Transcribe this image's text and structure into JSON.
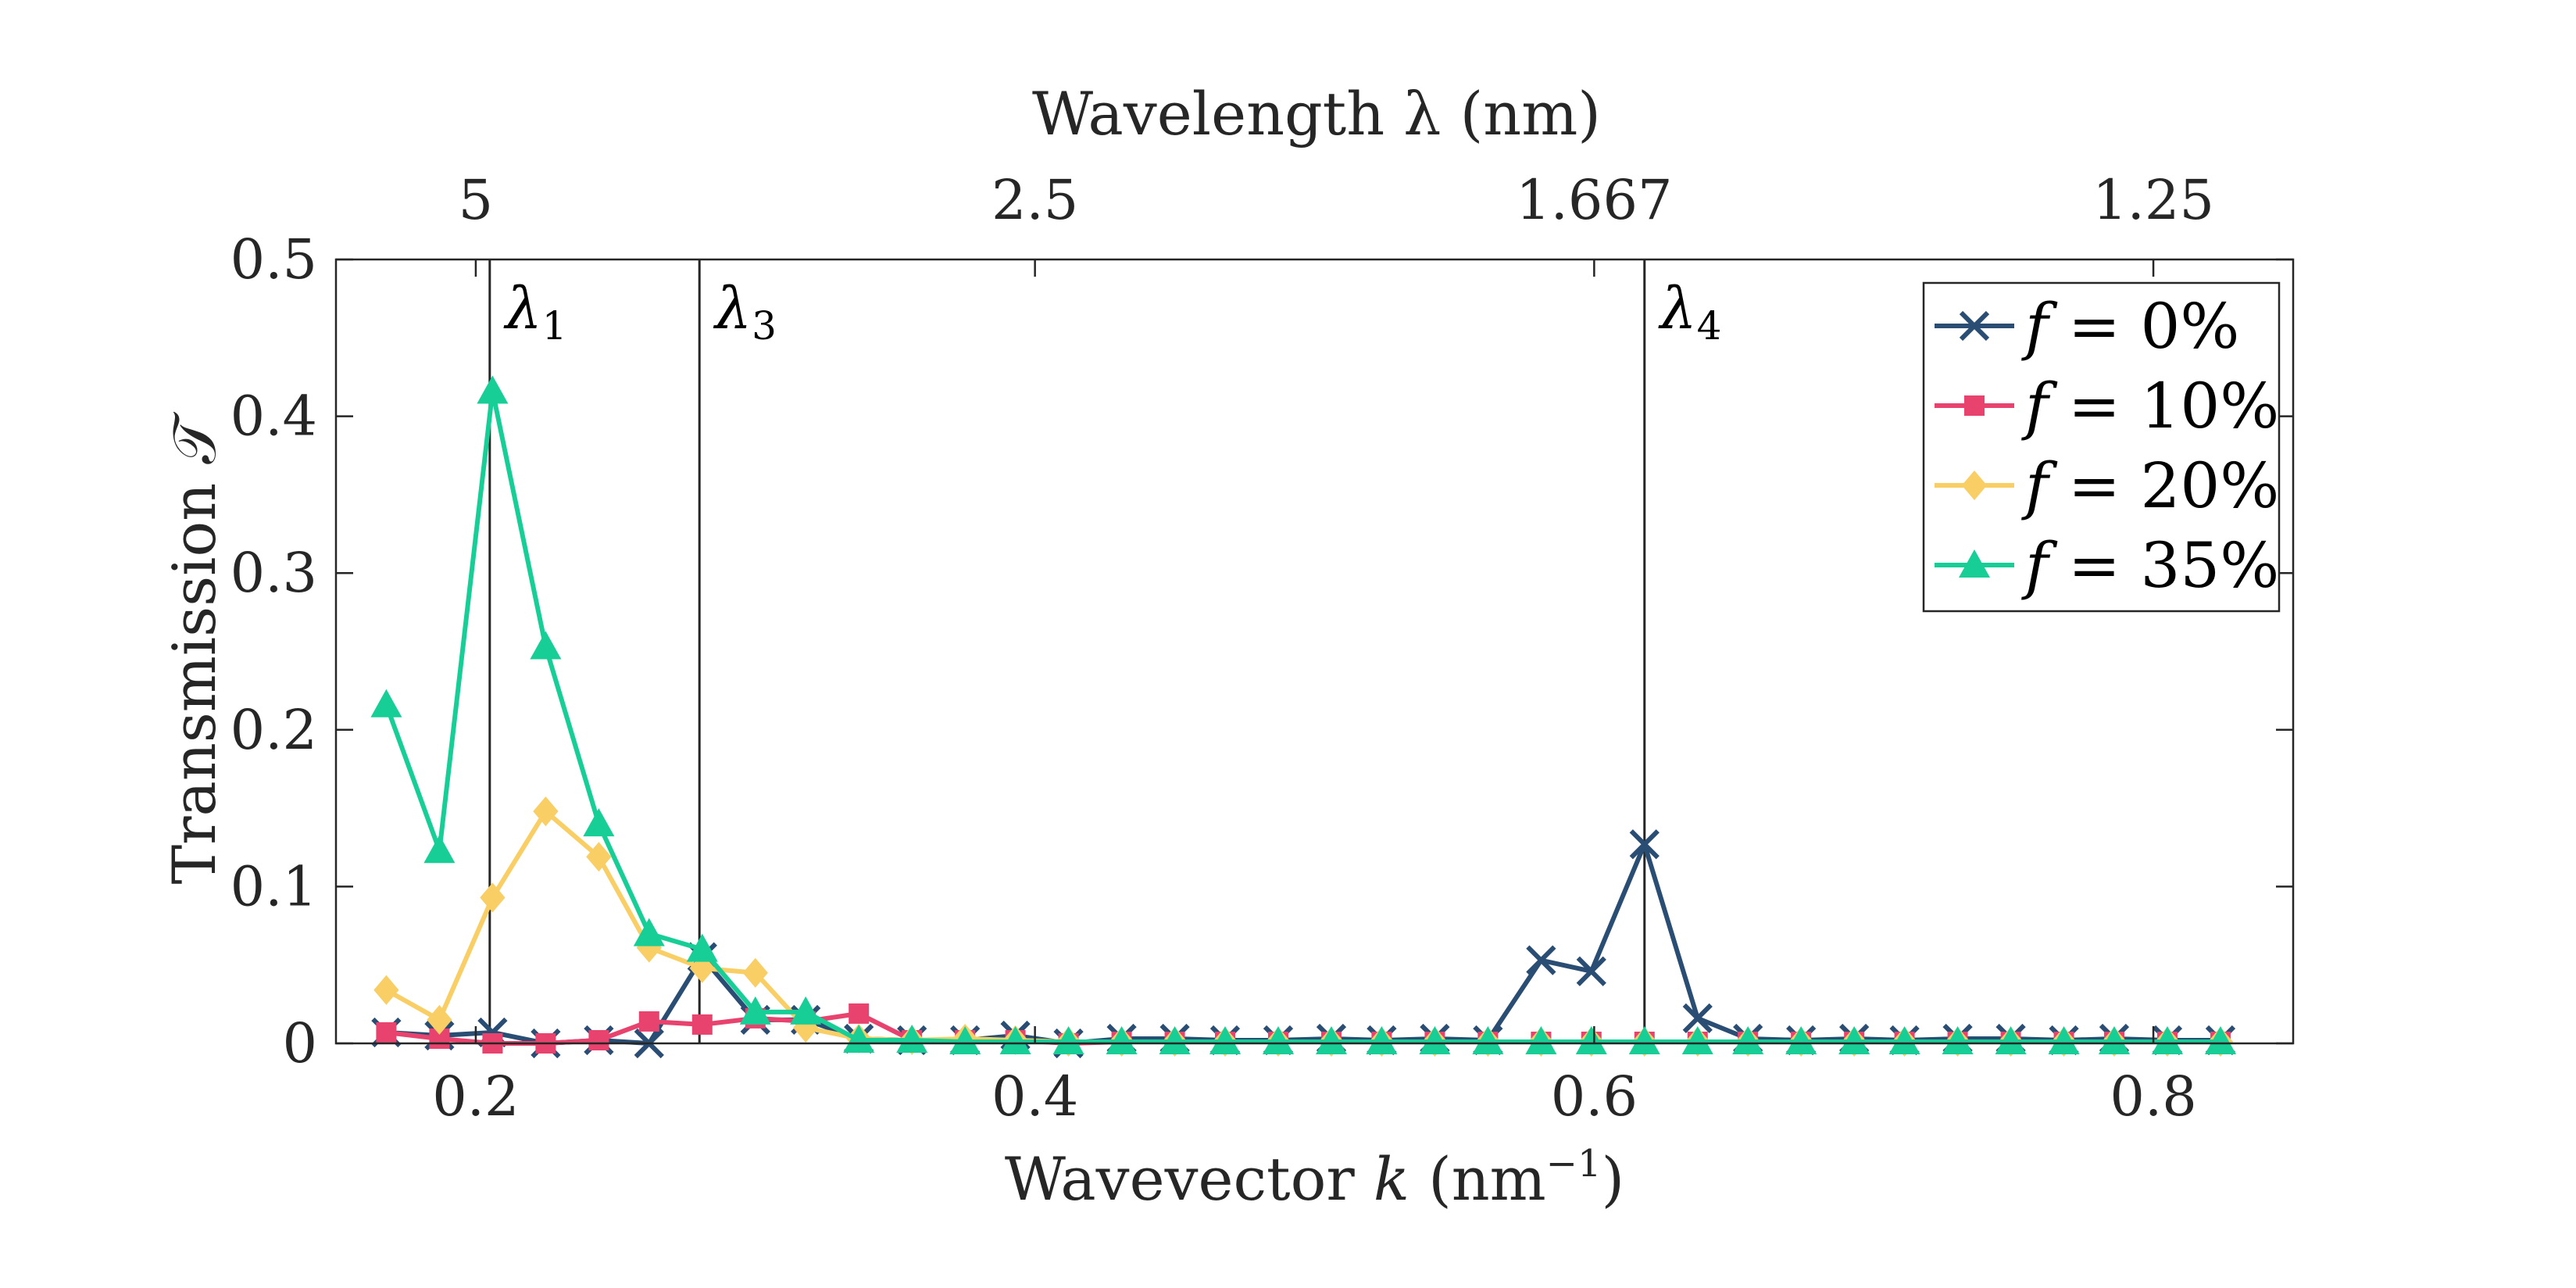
{
  "chart_data": {
    "type": "line",
    "xlabel_prefix": "Wavevector ",
    "xlabel_var": "k",
    "xlabel_unit_open": " (nm",
    "xlabel_unit_exp": "−1",
    "xlabel_unit_close": ")",
    "ylabel": "Transmission 𝒯",
    "top_xlabel": "Wavelength λ (nm)",
    "xlim": [
      0.15,
      0.85
    ],
    "ylim": [
      0,
      0.5
    ],
    "xticks": [
      0.2,
      0.4,
      0.6,
      0.8
    ],
    "xtick_labels": [
      "0.2",
      "0.4",
      "0.6",
      "0.8"
    ],
    "yticks": [
      0,
      0.1,
      0.2,
      0.3,
      0.4,
      0.5
    ],
    "ytick_labels": [
      "0",
      "0.1",
      "0.2",
      "0.3",
      "0.4",
      "0.5"
    ],
    "top_ticks": [
      {
        "k": 0.2,
        "label": "5"
      },
      {
        "k": 0.4,
        "label": "2.5"
      },
      {
        "k": 0.6,
        "label": "1.667"
      },
      {
        "k": 0.8,
        "label": "1.25"
      }
    ],
    "vertical_lines": [
      {
        "k": 0.205,
        "label_main": "λ",
        "label_sub": "1"
      },
      {
        "k": 0.28,
        "label_main": "λ",
        "label_sub": "3"
      },
      {
        "k": 0.618,
        "label_main": "λ",
        "label_sub": "4"
      }
    ],
    "x": [
      0.168,
      0.187,
      0.206,
      0.225,
      0.244,
      0.262,
      0.281,
      0.3,
      0.318,
      0.337,
      0.356,
      0.375,
      0.393,
      0.412,
      0.431,
      0.45,
      0.468,
      0.487,
      0.506,
      0.524,
      0.543,
      0.562,
      0.581,
      0.599,
      0.618,
      0.637,
      0.655,
      0.674,
      0.693,
      0.711,
      0.73,
      0.749,
      0.768,
      0.786,
      0.805,
      0.824
    ],
    "series": [
      {
        "name": "f = 0%",
        "label_var": "f",
        "label_rest": " = 0%",
        "color": "#2a4d73",
        "marker": "x",
        "values": [
          0.007,
          0.005,
          0.007,
          0.0,
          0.002,
          0.0,
          0.055,
          0.015,
          0.015,
          0.003,
          0.002,
          0.002,
          0.005,
          0.0,
          0.003,
          0.003,
          0.002,
          0.002,
          0.003,
          0.002,
          0.003,
          0.002,
          0.053,
          0.046,
          0.127,
          0.016,
          0.003,
          0.002,
          0.003,
          0.002,
          0.003,
          0.003,
          0.002,
          0.003,
          0.002,
          0.002
        ]
      },
      {
        "name": "f = 10%",
        "label_var": "f",
        "label_rest": " = 10%",
        "color": "#e8436e",
        "marker": "square",
        "values": [
          0.007,
          0.003,
          0.0,
          0.0,
          0.002,
          0.014,
          0.012,
          0.016,
          0.014,
          0.019,
          0.002,
          0.002,
          0.002,
          0.0,
          0.001,
          0.001,
          0.001,
          0.001,
          0.001,
          0.001,
          0.001,
          0.001,
          0.001,
          0.001,
          0.001,
          0.001,
          0.001,
          0.001,
          0.001,
          0.001,
          0.001,
          0.001,
          0.001,
          0.001,
          0.001,
          0.001
        ]
      },
      {
        "name": "f = 20%",
        "label_var": "f",
        "label_rest": " = 20%",
        "color": "#f9cf65",
        "marker": "diamond",
        "values": [
          0.034,
          0.015,
          0.093,
          0.148,
          0.119,
          0.061,
          0.048,
          0.045,
          0.01,
          0.003,
          0.002,
          0.003,
          0.002,
          0.001,
          0.001,
          0.001,
          0.001,
          0.001,
          0.001,
          0.001,
          0.001,
          0.001,
          0.001,
          0.001,
          0.001,
          0.001,
          0.001,
          0.001,
          0.001,
          0.001,
          0.001,
          0.001,
          0.001,
          0.001,
          0.001,
          0.001
        ]
      },
      {
        "name": "f = 35%",
        "label_var": "f",
        "label_rest": " = 35%",
        "color": "#17cf96",
        "marker": "triangle",
        "values": [
          0.216,
          0.123,
          0.416,
          0.253,
          0.14,
          0.07,
          0.06,
          0.02,
          0.02,
          0.002,
          0.002,
          0.001,
          0.001,
          0.001,
          0.001,
          0.001,
          0.001,
          0.001,
          0.001,
          0.001,
          0.001,
          0.001,
          0.001,
          0.001,
          0.001,
          0.001,
          0.001,
          0.001,
          0.001,
          0.001,
          0.001,
          0.001,
          0.001,
          0.001,
          0.001,
          0.001
        ]
      }
    ],
    "legend": "top-right",
    "grid": false
  }
}
